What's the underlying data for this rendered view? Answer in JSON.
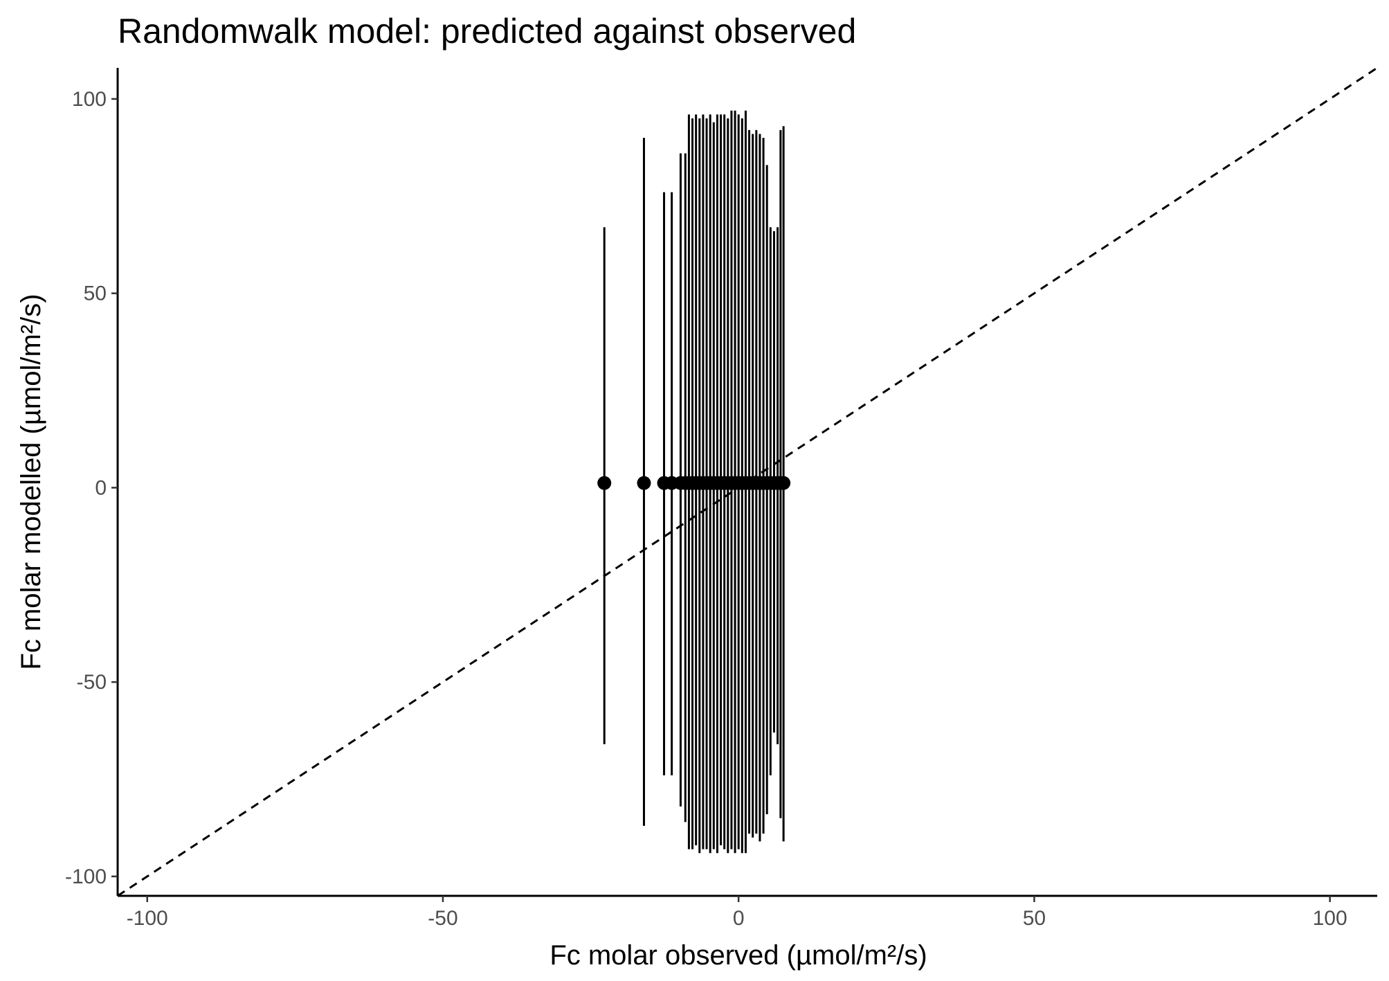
{
  "chart_data": {
    "type": "scatter",
    "title": "Randomwalk model: predicted against observed",
    "xlabel": "Fc molar observed (µmol/m²/s)",
    "ylabel": "Fc molar modelled (µmol/m²/s)",
    "xlim": [
      -105,
      108
    ],
    "ylim": [
      -105,
      108
    ],
    "xticks": [
      -100,
      -50,
      0,
      50,
      100
    ],
    "yticks": [
      -100,
      -50,
      0,
      50,
      100
    ],
    "xtick_labels": [
      "-100",
      "-50",
      "0",
      "50",
      "100"
    ],
    "ytick_labels": [
      "-100",
      "-50",
      "0",
      "50",
      "100"
    ],
    "grid": false,
    "reference_line": {
      "slope": 1,
      "intercept": 0,
      "style": "dashed"
    },
    "series": [
      {
        "x": [
          -22.7,
          -16.0,
          -12.6,
          -11.3,
          -9.8,
          -9.0,
          -8.4,
          -7.8,
          -7.2,
          -6.6,
          -6.0,
          -5.4,
          -4.8,
          -4.2,
          -3.6,
          -3.0,
          -2.4,
          -1.8,
          -1.2,
          -0.6,
          0.0,
          0.6,
          1.2,
          1.8,
          2.4,
          3.0,
          3.6,
          4.2,
          4.8,
          5.4,
          6.0,
          6.6,
          7.1,
          7.6
        ],
        "y": [
          1.2,
          1.2,
          1.2,
          1.2,
          1.2,
          1.2,
          1.2,
          1.2,
          1.2,
          1.2,
          1.2,
          1.2,
          1.2,
          1.2,
          1.2,
          1.2,
          1.2,
          1.2,
          1.2,
          1.2,
          1.2,
          1.2,
          1.2,
          1.2,
          1.2,
          1.2,
          1.2,
          1.2,
          1.2,
          1.2,
          1.2,
          1.2,
          1.2,
          1.2
        ],
        "ymin": [
          -66,
          -87,
          -74,
          -74,
          -82,
          -86,
          -93,
          -93,
          -92,
          -94,
          -93,
          -93,
          -94,
          -93,
          -94,
          -92,
          -93,
          -94,
          -93,
          -94,
          -93,
          -94,
          -94,
          -89,
          -90,
          -89,
          -91,
          -89,
          -84,
          -74,
          -63,
          -66,
          -85,
          -91
        ],
        "ymax": [
          67,
          90,
          76,
          76,
          86,
          86,
          96,
          95,
          96,
          95,
          96,
          95,
          96,
          94,
          96,
          96,
          96,
          95,
          97,
          97,
          96,
          95,
          97,
          92,
          91,
          92,
          91,
          90,
          83,
          67,
          66,
          67,
          92,
          93
        ]
      }
    ]
  }
}
